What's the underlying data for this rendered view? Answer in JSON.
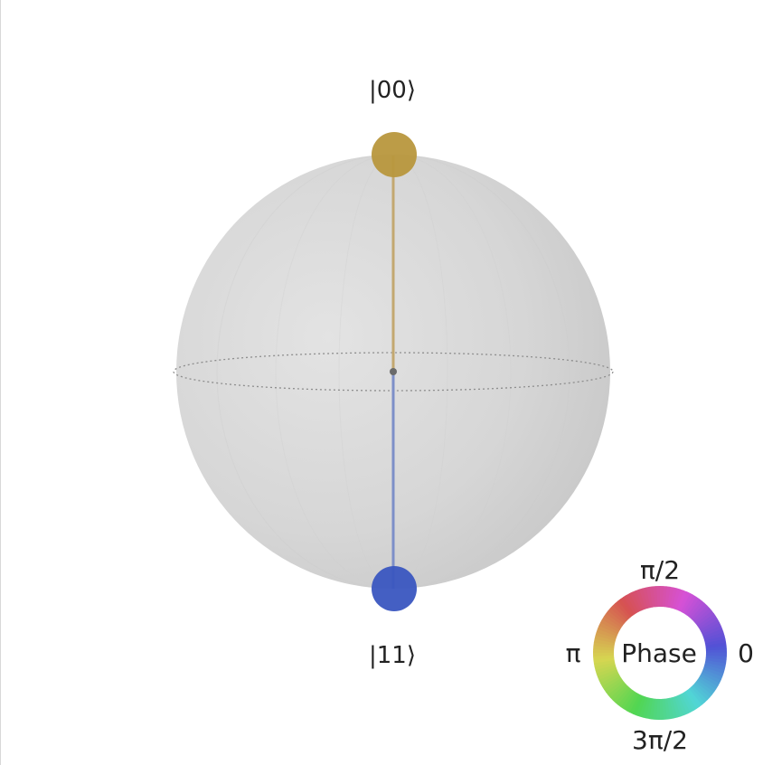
{
  "sphere": {
    "states": [
      {
        "label": "|00⟩",
        "color": "#b8973d",
        "stem_color": "#c3a870"
      },
      {
        "label": "|11⟩",
        "color": "#3a56c0",
        "stem_color": "#7d8fc8"
      }
    ]
  },
  "phase_wheel": {
    "center_label": "Phase",
    "labels": {
      "top": "π/2",
      "left": "π",
      "right": "0",
      "bottom": "3π/2"
    }
  }
}
